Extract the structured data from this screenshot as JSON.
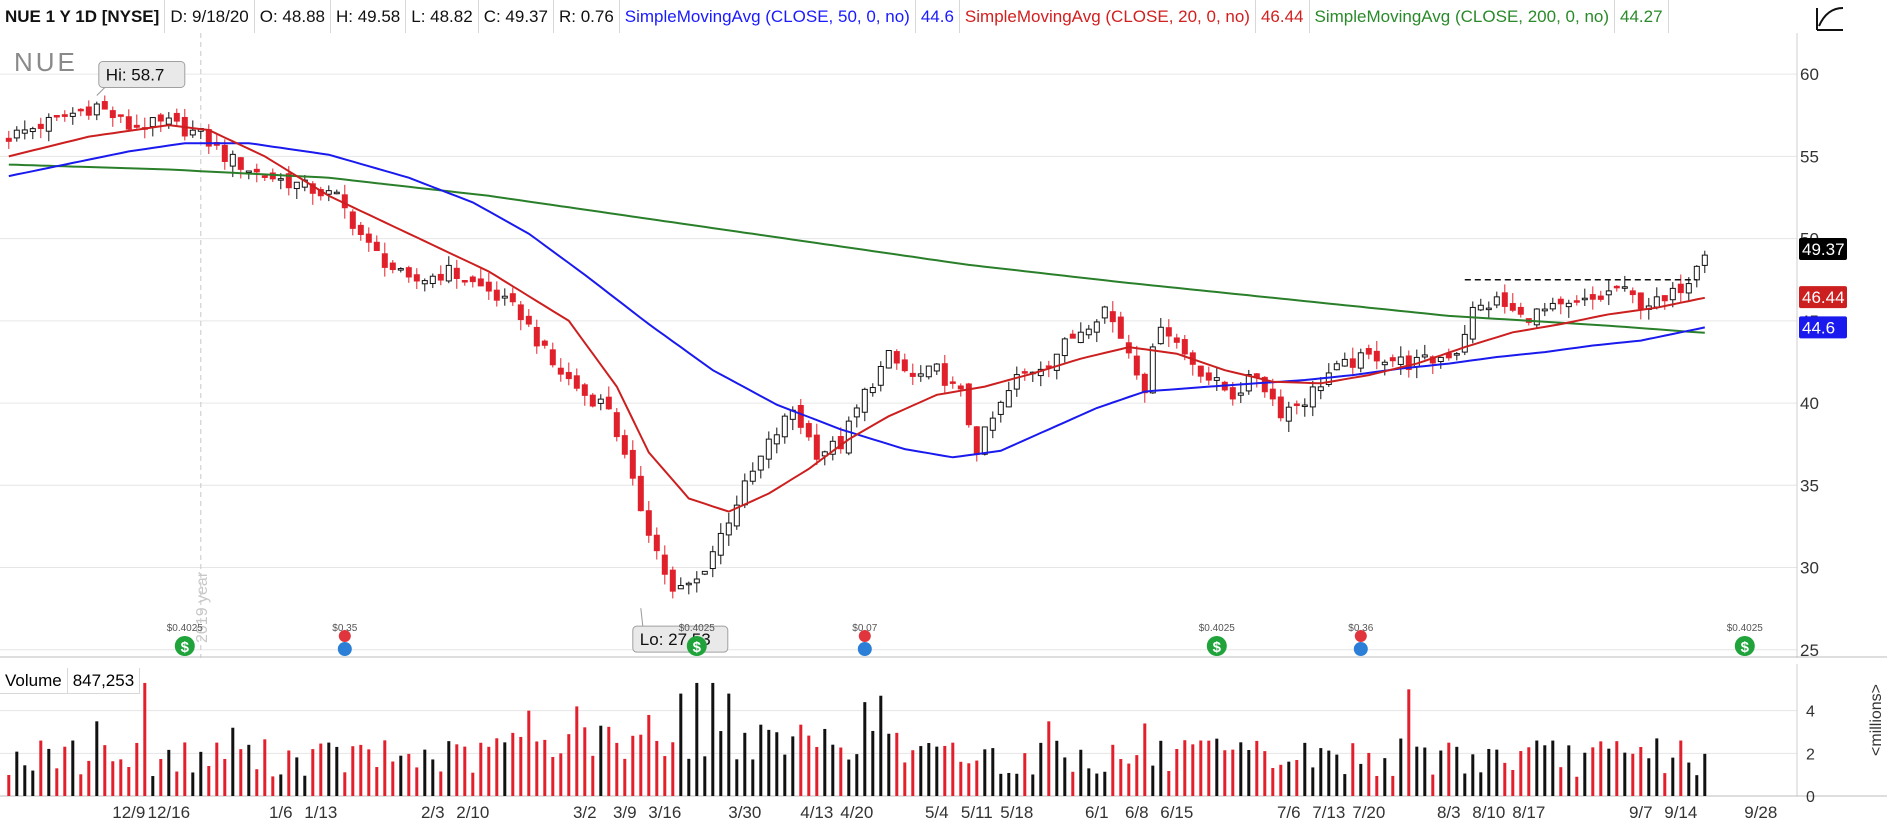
{
  "header": {
    "symbol": "NUE 1 Y 1D [NYSE]",
    "date": "D: 9/18/20",
    "open": "O: 48.88",
    "high": "H: 49.58",
    "low": "L: 48.82",
    "close": "C: 49.37",
    "range": "R: 0.76",
    "sma50_label": "SimpleMovingAvg (CLOSE, 50, 0, no)",
    "sma50_value": "44.6",
    "sma20_label": "SimpleMovingAvg (CLOSE, 20, 0, no)",
    "sma20_value": "46.44",
    "sma200_label": "SimpleMovingAvg (CLOSE, 200, 0, no)",
    "sma200_value": "44.27"
  },
  "watermark": "NUE",
  "year_marker": "2019 year",
  "volume_panel": {
    "label": "Volume",
    "value": "847,253",
    "unit": "<millions>"
  },
  "colors": {
    "up": "#111111",
    "down": "#e0202a",
    "sma50": "#1a1aee",
    "sma20": "#cc1f1f",
    "sma200": "#2a7f2a",
    "dividend": "#1fa33a",
    "earnings": "#e0353d",
    "grid": "#e6e6e6"
  },
  "chart_data": [
    {
      "type": "candlestick",
      "title": "NUE 1 Y 1D [NYSE]",
      "y_ticks": [
        25,
        30,
        35,
        40,
        45,
        50,
        55,
        60
      ],
      "ylim": [
        24.5,
        62.5
      ],
      "x_labels": [
        {
          "label": "12/9",
          "bar": 15
        },
        {
          "label": "12/16",
          "bar": 20
        },
        {
          "label": "1/6",
          "bar": 34
        },
        {
          "label": "1/13",
          "bar": 39
        },
        {
          "label": "2/3",
          "bar": 53
        },
        {
          "label": "2/10",
          "bar": 58
        },
        {
          "label": "3/2",
          "bar": 72
        },
        {
          "label": "3/9",
          "bar": 77
        },
        {
          "label": "3/16",
          "bar": 82
        },
        {
          "label": "3/30",
          "bar": 92
        },
        {
          "label": "4/13",
          "bar": 101
        },
        {
          "label": "4/20",
          "bar": 106
        },
        {
          "label": "5/4",
          "bar": 116
        },
        {
          "label": "5/11",
          "bar": 121
        },
        {
          "label": "5/18",
          "bar": 126
        },
        {
          "label": "6/1",
          "bar": 136
        },
        {
          "label": "6/8",
          "bar": 141
        },
        {
          "label": "6/15",
          "bar": 146
        },
        {
          "label": "7/6",
          "bar": 160
        },
        {
          "label": "7/13",
          "bar": 165
        },
        {
          "label": "7/20",
          "bar": 170
        },
        {
          "label": "8/3",
          "bar": 180
        },
        {
          "label": "8/10",
          "bar": 185
        },
        {
          "label": "8/17",
          "bar": 190
        },
        {
          "label": "9/7",
          "bar": 204
        },
        {
          "label": "9/14",
          "bar": 209
        },
        {
          "label": "9/28",
          "bar": 219
        }
      ],
      "keypoints": [
        [
          0,
          56.2
        ],
        [
          8,
          57.6
        ],
        [
          11,
          58.1
        ],
        [
          15,
          56.8
        ],
        [
          20,
          57.0
        ],
        [
          24,
          56.3
        ],
        [
          27,
          55.0
        ],
        [
          31,
          54.0
        ],
        [
          36,
          53.3
        ],
        [
          41,
          52.5
        ],
        [
          45,
          49.5
        ],
        [
          50,
          47.3
        ],
        [
          55,
          48.0
        ],
        [
          60,
          46.8
        ],
        [
          64,
          45.4
        ],
        [
          68,
          42.3
        ],
        [
          72,
          40.5
        ],
        [
          75,
          39.8
        ],
        [
          78,
          35.0
        ],
        [
          81,
          31.0
        ],
        [
          83,
          28.4
        ],
        [
          86,
          29.2
        ],
        [
          88,
          31.0
        ],
        [
          91,
          34.0
        ],
        [
          95,
          37.5
        ],
        [
          98,
          39.6
        ],
        [
          101,
          37.0
        ],
        [
          104,
          37.5
        ],
        [
          107,
          40.6
        ],
        [
          110,
          42.8
        ],
        [
          113,
          41.5
        ],
        [
          116,
          42.0
        ],
        [
          119,
          40.5
        ],
        [
          121,
          37.2
        ],
        [
          123,
          39.0
        ],
        [
          126,
          41.5
        ],
        [
          130,
          42.6
        ],
        [
          134,
          44.5
        ],
        [
          137,
          45.8
        ],
        [
          140,
          43.2
        ],
        [
          142,
          41.0
        ],
        [
          144,
          45.0
        ],
        [
          147,
          43.0
        ],
        [
          150,
          41.5
        ],
        [
          153,
          40.5
        ],
        [
          156,
          41.7
        ],
        [
          159,
          39.5
        ],
        [
          162,
          40.2
        ],
        [
          165,
          41.8
        ],
        [
          168,
          42.5
        ],
        [
          171,
          42.9
        ],
        [
          175,
          42.4
        ],
        [
          178,
          42.6
        ],
        [
          181,
          43.2
        ],
        [
          183,
          45.6
        ],
        [
          186,
          46.2
        ],
        [
          189,
          45.2
        ],
        [
          192,
          45.6
        ],
        [
          195,
          45.8
        ],
        [
          199,
          46.4
        ],
        [
          201,
          47.0
        ],
        [
          204,
          46.1
        ],
        [
          207,
          46.1
        ],
        [
          210,
          47.6
        ],
        [
          211,
          48.7
        ],
        [
          212,
          49.4
        ]
      ],
      "sma20_keypoints": [
        [
          0,
          55.0
        ],
        [
          10,
          56.2
        ],
        [
          20,
          56.9
        ],
        [
          25,
          56.6
        ],
        [
          32,
          55.0
        ],
        [
          40,
          52.6
        ],
        [
          50,
          50.3
        ],
        [
          60,
          48.0
        ],
        [
          70,
          45.0
        ],
        [
          76,
          41.0
        ],
        [
          80,
          37.0
        ],
        [
          85,
          34.2
        ],
        [
          90,
          33.4
        ],
        [
          95,
          34.5
        ],
        [
          100,
          36.0
        ],
        [
          105,
          37.8
        ],
        [
          110,
          39.2
        ],
        [
          116,
          40.5
        ],
        [
          122,
          41.0
        ],
        [
          128,
          41.8
        ],
        [
          134,
          42.7
        ],
        [
          140,
          43.4
        ],
        [
          146,
          43.0
        ],
        [
          152,
          42.0
        ],
        [
          158,
          41.3
        ],
        [
          164,
          41.2
        ],
        [
          170,
          41.7
        ],
        [
          176,
          42.4
        ],
        [
          182,
          43.4
        ],
        [
          188,
          44.3
        ],
        [
          194,
          44.8
        ],
        [
          200,
          45.4
        ],
        [
          206,
          45.8
        ],
        [
          212,
          46.4
        ]
      ],
      "sma50_keypoints": [
        [
          0,
          53.8
        ],
        [
          8,
          54.6
        ],
        [
          15,
          55.3
        ],
        [
          22,
          55.8
        ],
        [
          30,
          55.8
        ],
        [
          40,
          55.1
        ],
        [
          50,
          53.7
        ],
        [
          58,
          52.2
        ],
        [
          65,
          50.3
        ],
        [
          72,
          47.8
        ],
        [
          80,
          44.8
        ],
        [
          88,
          42.0
        ],
        [
          96,
          39.9
        ],
        [
          104,
          38.4
        ],
        [
          112,
          37.2
        ],
        [
          118,
          36.7
        ],
        [
          124,
          37.1
        ],
        [
          130,
          38.4
        ],
        [
          136,
          39.7
        ],
        [
          142,
          40.7
        ],
        [
          150,
          41.0
        ],
        [
          156,
          41.2
        ],
        [
          162,
          41.4
        ],
        [
          168,
          41.7
        ],
        [
          174,
          42.1
        ],
        [
          180,
          42.4
        ],
        [
          186,
          42.8
        ],
        [
          192,
          43.1
        ],
        [
          198,
          43.5
        ],
        [
          204,
          43.8
        ],
        [
          212,
          44.6
        ]
      ],
      "sma200_keypoints": [
        [
          0,
          54.5
        ],
        [
          20,
          54.2
        ],
        [
          40,
          53.7
        ],
        [
          60,
          52.6
        ],
        [
          80,
          51.2
        ],
        [
          100,
          49.8
        ],
        [
          120,
          48.4
        ],
        [
          140,
          47.3
        ],
        [
          160,
          46.3
        ],
        [
          180,
          45.3
        ],
        [
          200,
          44.7
        ],
        [
          212,
          44.27
        ]
      ],
      "hi_label": {
        "text": "Hi: 58.7",
        "bar": 11,
        "value": 58.7
      },
      "lo_label": {
        "text": "Lo: 27.53",
        "bar": 79,
        "value": 27.53
      },
      "resistance": {
        "from_bar": 182,
        "to_bar": 211,
        "value": 47.5
      },
      "price_tags": [
        {
          "text": "49.37",
          "value": 49.37,
          "bg": "#000000"
        },
        {
          "text": "46.44",
          "value": 46.44,
          "bg": "#cc1f1f"
        },
        {
          "text": "44.6",
          "value": 44.6,
          "bg": "#1a1aee"
        }
      ],
      "events": [
        {
          "bar": 22,
          "kind": "dividend",
          "amount": "$0.4025"
        },
        {
          "bar": 42,
          "kind": "earnings",
          "amount": "$0.35"
        },
        {
          "bar": 86,
          "kind": "dividend",
          "amount": "$0.4025"
        },
        {
          "bar": 107,
          "kind": "earnings",
          "amount": "$0.07"
        },
        {
          "bar": 151,
          "kind": "dividend",
          "amount": "$0.4025"
        },
        {
          "bar": 169,
          "kind": "earnings",
          "amount": "$0.36"
        },
        {
          "bar": 217,
          "kind": "dividend",
          "amount": "$0.4025"
        }
      ],
      "year_divider_bar": 24
    },
    {
      "type": "bar",
      "title": "Volume",
      "ylabel": "<millions>",
      "y_ticks": [
        0,
        2,
        4
      ],
      "ylim": [
        0,
        6.0
      ],
      "n_bars": 213,
      "spikes": [
        [
          17,
          5.3
        ],
        [
          11,
          3.5
        ],
        [
          28,
          3.2
        ],
        [
          65,
          4.0
        ],
        [
          71,
          4.2
        ],
        [
          80,
          3.8
        ],
        [
          84,
          4.8
        ],
        [
          86,
          5.3
        ],
        [
          88,
          5.3
        ],
        [
          90,
          4.8
        ],
        [
          95,
          3.1
        ],
        [
          107,
          4.4
        ],
        [
          109,
          4.7
        ],
        [
          118,
          2.5
        ],
        [
          130,
          3.5
        ],
        [
          142,
          3.4
        ],
        [
          175,
          5.0
        ],
        [
          180,
          2.5
        ],
        [
          206,
          2.7
        ],
        [
          209,
          2.6
        ]
      ]
    }
  ]
}
